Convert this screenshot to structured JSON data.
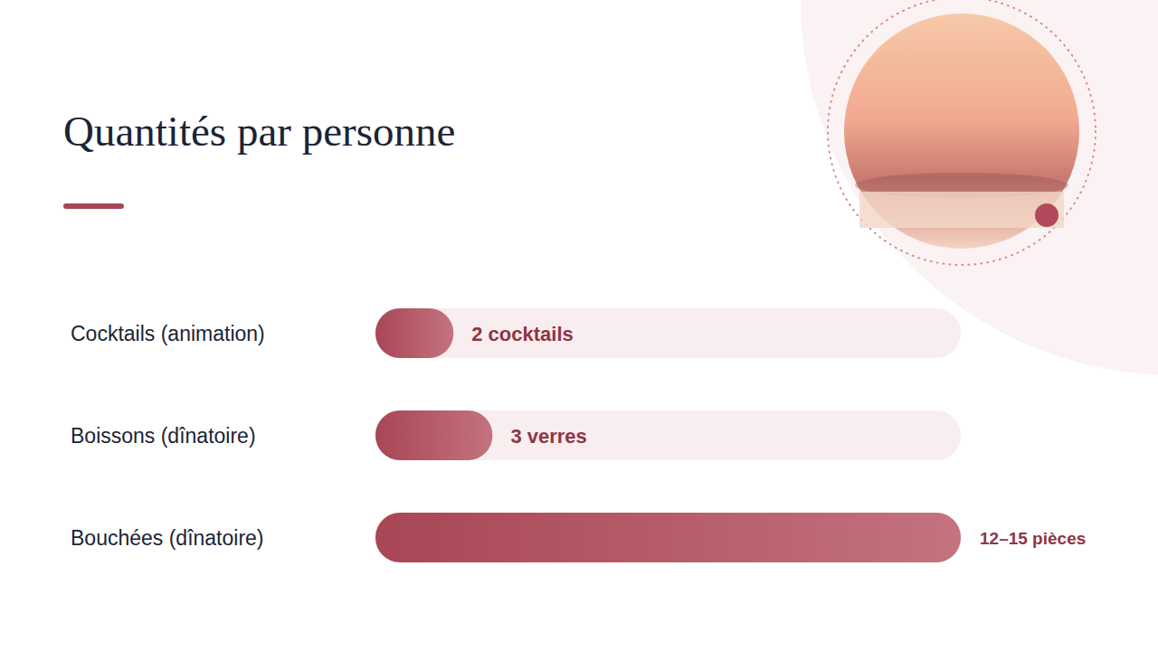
{
  "chart_data": {
    "type": "bar",
    "title": "Quantités par personne",
    "orientation": "horizontal",
    "categories": [
      "Cocktails (animation)",
      "Boissons (dînatoire)",
      "Bouchées (dînatoire)"
    ],
    "values": [
      2,
      3,
      15
    ],
    "value_labels": [
      "2 cocktails",
      "3 verres",
      "12–15 pièces"
    ],
    "xlim": [
      0,
      15
    ],
    "data_labels": true,
    "tick_labels": "y",
    "grid": false,
    "color": "#a84654"
  }
}
